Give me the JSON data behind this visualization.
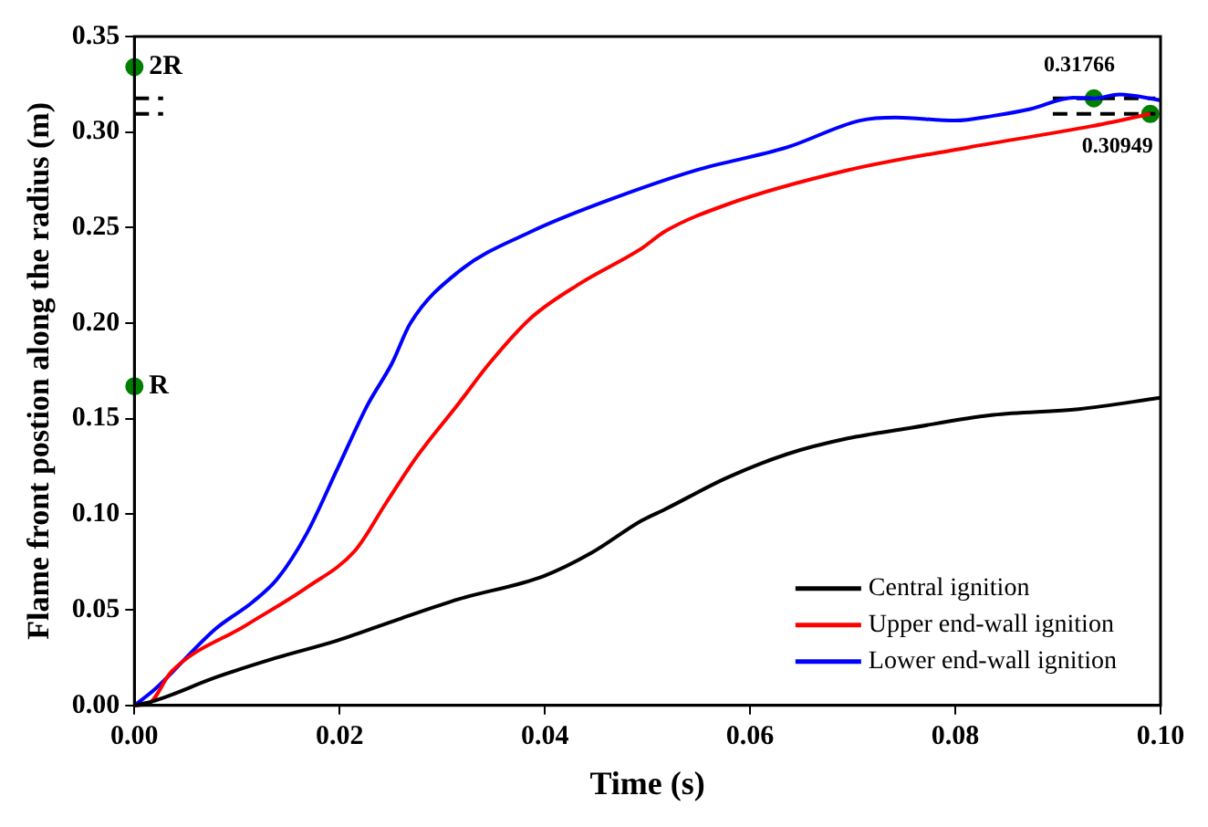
{
  "chart_data": {
    "type": "line",
    "xlabel": "Time (s)",
    "ylabel": "Flame front postion along the radius (m)",
    "xlim": [
      0,
      0.1
    ],
    "xticks": [
      {
        "value": 0,
        "label": "0.00"
      },
      0.02,
      0.04,
      0.06,
      0.08,
      {
        "value": 0.1,
        "label": "0.10"
      }
    ],
    "ylim": [
      0,
      0.35
    ],
    "yticks": [
      {
        "value": 0,
        "label": "0.00"
      },
      0.05,
      {
        "value": 0.1,
        "label": "0.10"
      },
      0.15,
      {
        "value": 0.2,
        "label": "0.20"
      },
      0.25,
      {
        "value": 0.3,
        "label": "0.30"
      },
      0.35
    ],
    "grid": false,
    "legend": "bottom right",
    "line_style": "solid",
    "marker": "none",
    "series": [
      {
        "name": "Central ignition",
        "color": "#000000",
        "x": [
          0,
          0.002,
          0.0079,
          0.0139,
          0.0198,
          0.0257,
          0.0316,
          0.0399,
          0.0446,
          0.0494,
          0.0517,
          0.0577,
          0.0636,
          0.0695,
          0.0754,
          0.0837,
          0.092,
          0.1
        ],
        "values": [
          0,
          0.0025,
          0.0146,
          0.025,
          0.034,
          0.045,
          0.0556,
          0.0677,
          0.08,
          0.0966,
          0.1026,
          0.119,
          0.1315,
          0.1397,
          0.145,
          0.152,
          0.155,
          0.161
        ]
      },
      {
        "name": "Upper end-wall ignition",
        "color": "#ff0000",
        "x": [
          0,
          0.0014,
          0.0036,
          0.0109,
          0.0168,
          0.0215,
          0.0245,
          0.0275,
          0.0316,
          0.0346,
          0.0387,
          0.0435,
          0.0494,
          0.0517,
          0.0577,
          0.0695,
          0.0813,
          0.0932,
          0.099
        ],
        "values": [
          0,
          0.001,
          0.0176,
          0.042,
          0.0617,
          0.081,
          0.1057,
          0.13,
          0.158,
          0.179,
          0.203,
          0.221,
          0.239,
          0.248,
          0.262,
          0.28,
          0.292,
          0.303,
          0.30949
        ]
      },
      {
        "name": "Lower end-wall ignition",
        "color": "#0000ff",
        "x": [
          0,
          0.002,
          0.0079,
          0.0115,
          0.0139,
          0.0168,
          0.0198,
          0.0227,
          0.0251,
          0.0269,
          0.0316,
          0.0387,
          0.0458,
          0.0547,
          0.0636,
          0.0707,
          0.0742,
          0.08,
          0.0837,
          0.0873,
          0.0915,
          0.0935,
          0.096,
          0.1
        ],
        "values": [
          0,
          0.0085,
          0.04,
          0.054,
          0.066,
          0.09,
          0.124,
          0.157,
          0.179,
          0.2,
          0.227,
          0.248,
          0.2636,
          0.28,
          0.292,
          0.306,
          0.3076,
          0.306,
          0.3085,
          0.312,
          0.318,
          0.31766,
          0.3197,
          0.3167
        ]
      },
      {
        "type": "line",
        "line_style": "dashed",
        "color": "#000000",
        "x": [
          0,
          0.0028
        ],
        "values": [
          0.31766,
          0.31766
        ]
      },
      {
        "type": "line",
        "line_style": "dashed",
        "color": "#000000",
        "x": [
          0,
          0.0028
        ],
        "values": [
          0.30949,
          0.30949
        ]
      },
      {
        "type": "line",
        "line_style": "dashed",
        "color": "#000000",
        "x": [
          0.0895,
          0.0995
        ],
        "values": [
          0.31766,
          0.31766
        ]
      },
      {
        "type": "line",
        "line_style": "dashed",
        "color": "#000000",
        "x": [
          0.0895,
          0.0995
        ],
        "values": [
          0.30949,
          0.30949
        ]
      },
      {
        "type": "scatter",
        "marker": "circle",
        "color": "#007f00",
        "x": [
          0,
          0,
          0.0935,
          0.099
        ],
        "values": [
          0.334,
          0.167,
          0.31766,
          0.30949
        ]
      }
    ],
    "annotations": [
      {
        "text": "2R",
        "x": 0,
        "y": 0.334
      },
      {
        "text": "R",
        "x": 0,
        "y": 0.167
      },
      {
        "text": "0.31766",
        "x": 0.0935,
        "y": 0.31766
      },
      {
        "text": "0.30949",
        "x": 0.099,
        "y": 0.30949
      }
    ]
  }
}
